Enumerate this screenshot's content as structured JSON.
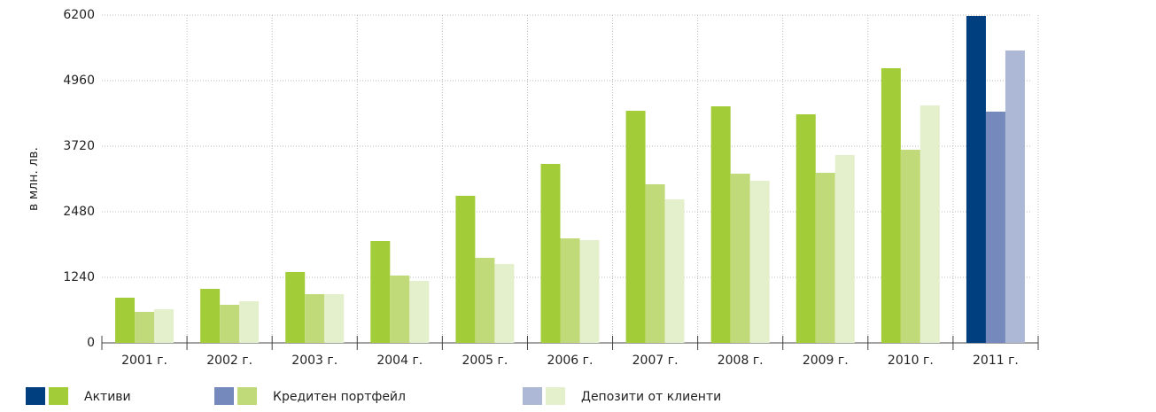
{
  "chart_data": {
    "type": "bar",
    "y_label": "в млн. лв.",
    "categories": [
      "2001 г.",
      "2002 г.",
      "2003 г.",
      "2004 г.",
      "2005 г.",
      "2006 г.",
      "2007 г.",
      "2008 г.",
      "2009 г.",
      "2010 г.",
      "2011 г."
    ],
    "series": [
      {
        "name": "Активи",
        "color": "#a3cc39",
        "highlight_color": "#003f7f",
        "values": [
          855,
          1022,
          1341,
          1927,
          2782,
          3385,
          4390,
          4474,
          4323,
          5195,
          6184
        ]
      },
      {
        "name": "Кредитен портфейл",
        "color": "#c0da7a",
        "highlight_color": "#7589bd",
        "values": [
          587,
          721,
          922,
          1274,
          1609,
          1977,
          3000,
          3200,
          3217,
          3653,
          4374
        ]
      },
      {
        "name": "Депозити от клиенти",
        "color": "#e4efcc",
        "highlight_color": "#adb8d7",
        "values": [
          637,
          788,
          922,
          1173,
          1492,
          1944,
          2715,
          3067,
          3553,
          4491,
          5530
        ]
      }
    ],
    "highlight_last": true,
    "ylim": [
      0,
      6200
    ],
    "yticks": [
      0,
      1240,
      2480,
      3720,
      4960,
      6200
    ],
    "grid": true
  }
}
